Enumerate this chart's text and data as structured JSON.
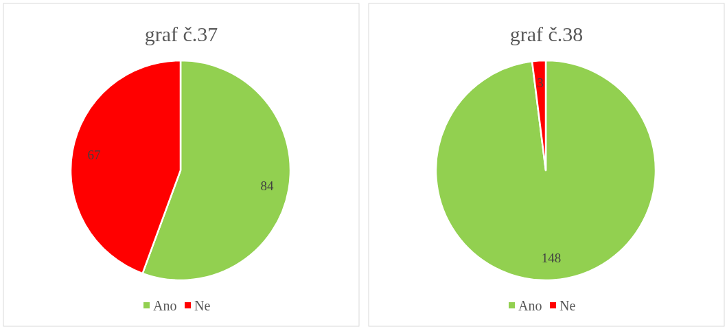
{
  "chart_data": [
    {
      "type": "pie",
      "title": "graf č.37",
      "categories": [
        "Ano",
        "Ne"
      ],
      "values": [
        84,
        67
      ],
      "colors": [
        "#92d050",
        "#ff0000"
      ],
      "data_labels": true,
      "legend": "bottom"
    },
    {
      "type": "pie",
      "title": "graf č.38",
      "categories": [
        "Ano",
        "Ne"
      ],
      "values": [
        148,
        3
      ],
      "colors": [
        "#92d050",
        "#ff0000"
      ],
      "data_labels": true,
      "legend": "bottom"
    }
  ]
}
